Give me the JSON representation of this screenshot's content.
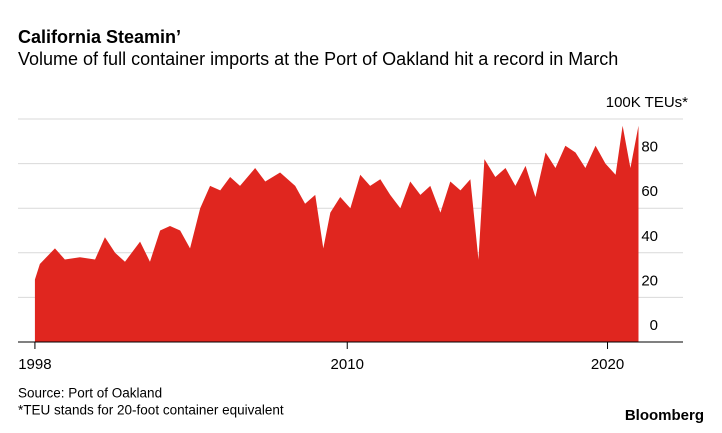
{
  "chart_data": {
    "type": "area",
    "title": "California Steamin’",
    "subtitle": "Volume of full container imports at the Port of Oakland hit a record in March",
    "source": "Source: Port of Oakland",
    "footnote": "*TEU stands for 20-foot container equivalent",
    "brand": "Bloomberg",
    "color": "#e0261f",
    "x": [
      1998.0,
      1998.19,
      1998.77,
      1999.15,
      1999.73,
      2000.31,
      2000.69,
      2001.08,
      2001.46,
      2002.04,
      2002.42,
      2002.81,
      2003.19,
      2003.58,
      2003.96,
      2004.35,
      2004.73,
      2005.12,
      2005.5,
      2005.88,
      2006.46,
      2006.85,
      2007.42,
      2008.0,
      2008.38,
      2008.77,
      2009.08,
      2009.35,
      2009.73,
      2010.12,
      2010.5,
      2010.88,
      2011.27,
      2011.65,
      2012.04,
      2012.42,
      2012.81,
      2013.19,
      2013.58,
      2013.96,
      2014.35,
      2014.73,
      2015.04,
      2015.27,
      2015.69,
      2016.08,
      2016.46,
      2016.85,
      2017.23,
      2017.62,
      2018.0,
      2018.38,
      2018.77,
      2019.15,
      2019.54,
      2019.92,
      2020.31,
      2020.58,
      2020.88,
      2021.19
    ],
    "values": [
      28,
      35,
      42,
      37,
      38,
      37,
      47,
      40,
      36,
      45,
      36,
      50,
      52,
      50,
      42,
      60,
      70,
      68,
      74,
      70,
      78,
      72,
      76,
      70,
      62,
      66,
      42,
      58,
      65,
      60,
      75,
      70,
      73,
      66,
      60,
      72,
      66,
      70,
      58,
      72,
      68,
      73,
      37,
      82,
      74,
      78,
      70,
      79,
      65,
      85,
      78,
      88,
      85,
      78,
      88,
      80,
      75,
      97,
      78,
      97
    ],
    "xlim": [
      1997.35,
      2022.9
    ],
    "xticks": [
      1998,
      2010,
      2020
    ],
    "ylim": [
      0,
      100
    ],
    "yticks": [
      0,
      20,
      40,
      60,
      80,
      {
        "value": 100,
        "label": "100K TEUs*"
      }
    ],
    "grid": true
  }
}
